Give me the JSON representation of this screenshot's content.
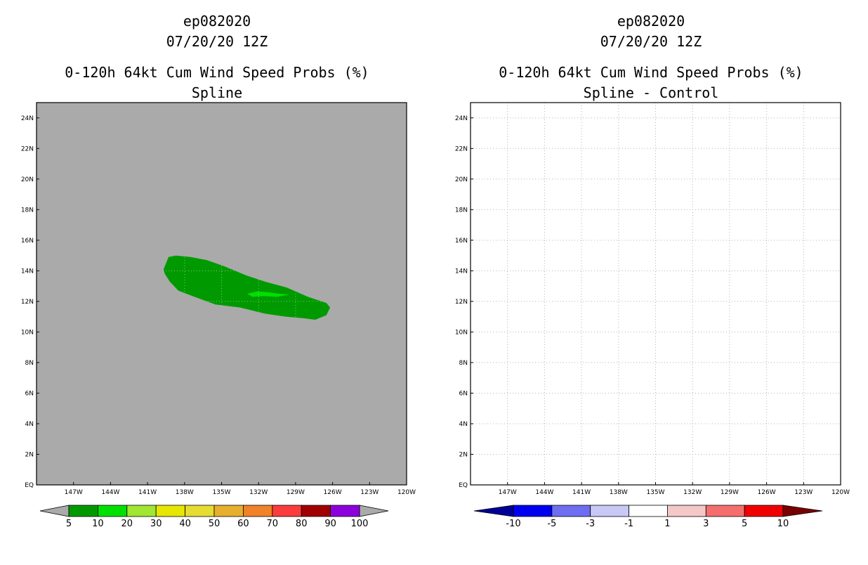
{
  "chart_data": [
    {
      "type": "heatmap",
      "storm": "ep082020",
      "datetime": "07/20/20 12Z",
      "title": "0-120h 64kt Cum Wind Speed Probs (%)",
      "subtitle": "Spline",
      "background_color": "#aaaaaa",
      "grid": false,
      "lon_range": [
        -150,
        -120
      ],
      "lat_range": [
        0,
        25
      ],
      "x_ticks": [
        -147,
        -144,
        -141,
        -138,
        -135,
        -132,
        -129,
        -126,
        -123,
        -120
      ],
      "x_tick_labels": [
        "147W",
        "144W",
        "141W",
        "138W",
        "135W",
        "132W",
        "129W",
        "126W",
        "123W",
        "120W"
      ],
      "y_ticks": [
        0,
        2,
        4,
        6,
        8,
        10,
        12,
        14,
        16,
        18,
        20,
        22,
        24
      ],
      "y_tick_labels": [
        "EQ",
        "2N",
        "4N",
        "6N",
        "8N",
        "10N",
        "12N",
        "14N",
        "16N",
        "18N",
        "20N",
        "22N",
        "24N"
      ],
      "regions": [
        {
          "level": "5-10",
          "color": "#009a00",
          "outline": [
            [
              -139.7,
              14.1
            ],
            [
              -139.3,
              14.9
            ],
            [
              -138.7,
              15.0
            ],
            [
              -137.5,
              14.9
            ],
            [
              -136.2,
              14.7
            ],
            [
              -134.8,
              14.3
            ],
            [
              -133.0,
              13.7
            ],
            [
              -131.5,
              13.3
            ],
            [
              -129.7,
              12.9
            ],
            [
              -128.0,
              12.3
            ],
            [
              -126.5,
              11.9
            ],
            [
              -126.2,
              11.6
            ],
            [
              -126.5,
              11.1
            ],
            [
              -127.4,
              10.8
            ],
            [
              -128.4,
              10.9
            ],
            [
              -129.8,
              11.0
            ],
            [
              -131.5,
              11.2
            ],
            [
              -133.5,
              11.6
            ],
            [
              -135.5,
              11.8
            ],
            [
              -137.2,
              12.3
            ],
            [
              -138.5,
              12.7
            ],
            [
              -139.2,
              13.3
            ],
            [
              -139.6,
              13.8
            ]
          ]
        },
        {
          "level": "10-20",
          "color": "#00e000",
          "outline": [
            [
              -132.9,
              12.5
            ],
            [
              -132.1,
              12.65
            ],
            [
              -131.3,
              12.6
            ],
            [
              -130.3,
              12.5
            ],
            [
              -129.5,
              12.45
            ],
            [
              -130.5,
              12.3
            ],
            [
              -131.6,
              12.35
            ],
            [
              -132.5,
              12.3
            ]
          ]
        }
      ],
      "colorbar": {
        "levels": [
          "5",
          "10",
          "20",
          "30",
          "40",
          "50",
          "60",
          "70",
          "80",
          "90",
          "100"
        ],
        "colors": [
          "#009a00",
          "#00e000",
          "#a0e632",
          "#e6e600",
          "#e6dc32",
          "#e6af2d",
          "#f08228",
          "#fa3c3c",
          "#a00000",
          "#8c00dc"
        ],
        "low_color": "#aaaaaa",
        "high_color": "#aaaaaa"
      }
    },
    {
      "type": "heatmap",
      "storm": "ep082020",
      "datetime": "07/20/20 12Z",
      "title": "0-120h 64kt Cum Wind Speed Probs (%)",
      "subtitle": "Spline - Control",
      "background_color": "#ffffff",
      "grid": true,
      "lon_range": [
        -150,
        -120
      ],
      "lat_range": [
        0,
        25
      ],
      "x_ticks": [
        -147,
        -144,
        -141,
        -138,
        -135,
        -132,
        -129,
        -126,
        -123,
        -120
      ],
      "x_tick_labels": [
        "147W",
        "144W",
        "141W",
        "138W",
        "135W",
        "132W",
        "129W",
        "126W",
        "123W",
        "120W"
      ],
      "y_ticks": [
        0,
        2,
        4,
        6,
        8,
        10,
        12,
        14,
        16,
        18,
        20,
        22,
        24
      ],
      "y_tick_labels": [
        "EQ",
        "2N",
        "4N",
        "6N",
        "8N",
        "10N",
        "12N",
        "14N",
        "16N",
        "18N",
        "20N",
        "22N",
        "24N"
      ],
      "regions": [],
      "colorbar": {
        "levels": [
          "-10",
          "-5",
          "-3",
          "-1",
          "1",
          "3",
          "5",
          "10"
        ],
        "colors": [
          "#0000f0",
          "#6e6ef0",
          "#c8c8f5",
          "#ffffff",
          "#f5c8c8",
          "#f56e6e",
          "#f00000"
        ],
        "low_color": "#000096",
        "high_color": "#780000"
      }
    }
  ]
}
